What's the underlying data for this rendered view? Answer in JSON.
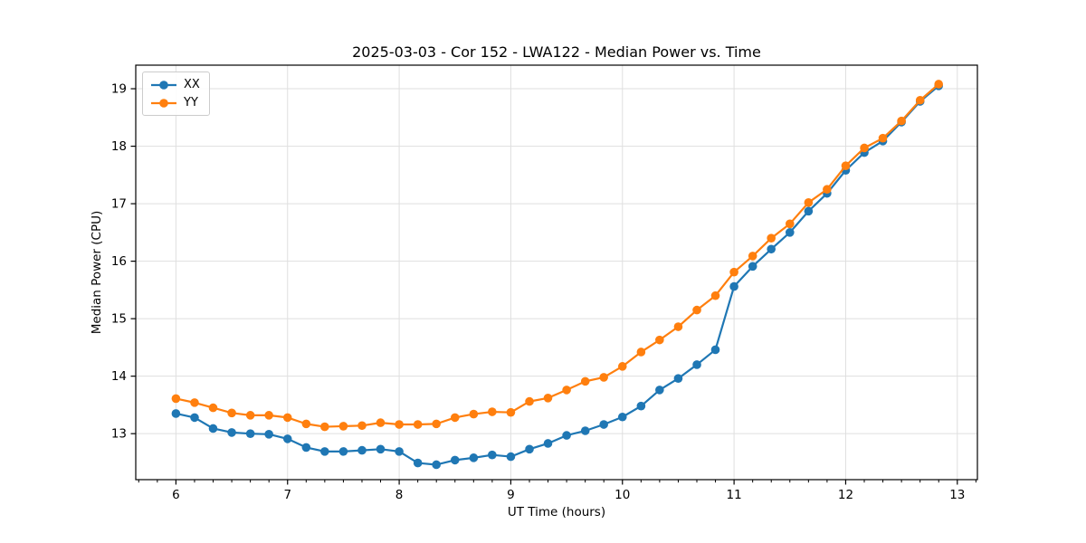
{
  "figure": {
    "title": "2025-03-03 - Cor 152 - LWA122 - Median Power vs. Time",
    "x_axis_label": "UT Time (hours)",
    "y_axis_label": "Median Power (CPU)"
  },
  "colors": {
    "series_xx": "#1f77b4",
    "series_yy": "#ff7f0e",
    "grid": "#dfdfdf",
    "spine": "#000000",
    "background": "#ffffff"
  },
  "chart_data": {
    "type": "line",
    "title": "2025-03-03 - Cor 152 - LWA122 - Median Power vs. Time",
    "xlabel": "UT Time (hours)",
    "ylabel": "Median Power (CPU)",
    "x": [
      6.0,
      6.167,
      6.333,
      6.5,
      6.667,
      6.833,
      7.0,
      7.167,
      7.333,
      7.5,
      7.667,
      7.833,
      8.0,
      8.167,
      8.333,
      8.5,
      8.667,
      8.833,
      9.0,
      9.167,
      9.333,
      9.5,
      9.667,
      9.833,
      10.0,
      10.167,
      10.333,
      10.5,
      10.667,
      10.833,
      11.0,
      11.167,
      11.333,
      11.5,
      11.667,
      11.833,
      12.0,
      12.167,
      12.333,
      12.5,
      12.667,
      12.833
    ],
    "series": [
      {
        "name": "XX",
        "color": "#1f77b4",
        "marker": "circle",
        "values": [
          13.35,
          13.28,
          13.09,
          13.02,
          13.0,
          12.99,
          12.91,
          12.76,
          12.69,
          12.69,
          12.71,
          12.73,
          12.69,
          12.49,
          12.46,
          12.54,
          12.58,
          12.63,
          12.6,
          12.73,
          12.83,
          12.97,
          13.05,
          13.16,
          13.29,
          13.48,
          13.76,
          13.96,
          14.2,
          14.46,
          15.56,
          15.91,
          16.21,
          16.5,
          16.87,
          17.18,
          17.58,
          17.89,
          18.09,
          18.42,
          18.78,
          19.05
        ]
      },
      {
        "name": "YY",
        "color": "#ff7f0e",
        "marker": "circle",
        "values": [
          13.61,
          13.54,
          13.45,
          13.36,
          13.32,
          13.32,
          13.28,
          13.17,
          13.12,
          13.13,
          13.14,
          13.19,
          13.16,
          13.16,
          13.17,
          13.28,
          13.34,
          13.38,
          13.37,
          13.56,
          13.62,
          13.76,
          13.91,
          13.98,
          14.17,
          14.42,
          14.63,
          14.86,
          15.15,
          15.4,
          15.81,
          16.09,
          16.4,
          16.65,
          17.02,
          17.25,
          17.66,
          17.97,
          18.14,
          18.44,
          18.8,
          19.08
        ]
      }
    ],
    "xlim": [
      5.64,
      13.18
    ],
    "ylim": [
      12.2,
      19.41
    ],
    "x_ticks": [
      6,
      7,
      8,
      9,
      10,
      11,
      12,
      13
    ],
    "y_ticks": [
      13,
      14,
      15,
      16,
      17,
      18,
      19
    ],
    "x_minor_tick_step": 0.1666667,
    "grid": true,
    "legend_position": "upper left"
  }
}
